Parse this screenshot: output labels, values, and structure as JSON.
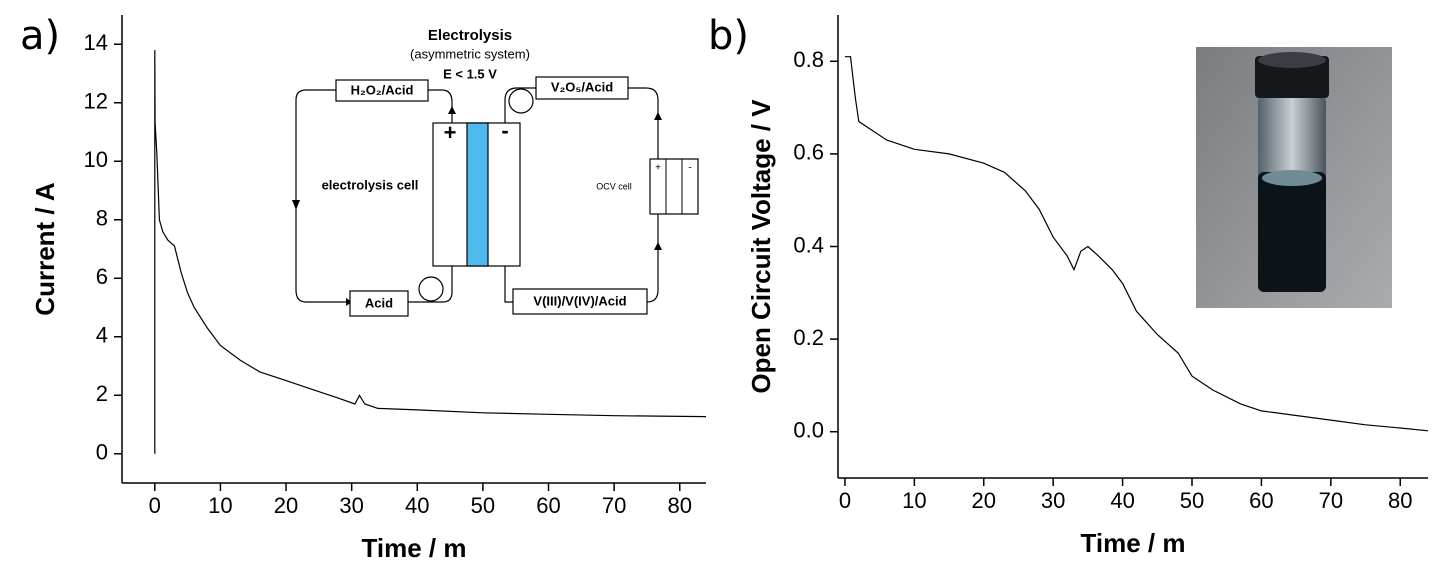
{
  "chart_data": [
    {
      "type": "line",
      "panel": "a)",
      "xlabel": "Time / m",
      "ylabel": "Current / A",
      "color": "#000000",
      "xlim": [
        -5,
        84
      ],
      "ylim": [
        -1,
        15
      ],
      "xticks": [
        0,
        10,
        20,
        30,
        40,
        50,
        60,
        70,
        80
      ],
      "yticks": [
        0,
        2,
        4,
        6,
        8,
        10,
        12,
        14
      ],
      "x": [
        0,
        0,
        0.05,
        0.3,
        0.7,
        1.2,
        2,
        3,
        4,
        5,
        6,
        8,
        10,
        13,
        16,
        20,
        24,
        28,
        30.5,
        31.2,
        32,
        34,
        40,
        50,
        60,
        70,
        84
      ],
      "values": [
        0,
        13.8,
        11.3,
        10.3,
        8,
        7.6,
        7.3,
        7.1,
        6.2,
        5.5,
        5,
        4.3,
        3.7,
        3.2,
        2.8,
        2.5,
        2.2,
        1.9,
        1.7,
        2.0,
        1.7,
        1.55,
        1.5,
        1.4,
        1.35,
        1.3,
        1.27
      ],
      "inset": {
        "title": "Electrolysis",
        "subtitle": "(asymmetric system)",
        "condition": "E < 1.5 V",
        "left_top": "H₂O₂/Acid",
        "right_top": "V₂O₅/Acid",
        "left_bottom": "Acid",
        "right_bottom": "V(III)/V(IV)/Acid",
        "cell": "electrolysis cell",
        "ocv": "OCV cell",
        "plus": "+",
        "minus": "-"
      }
    },
    {
      "type": "line",
      "panel": "b)",
      "xlabel": "Time / m",
      "ylabel": "Open Circuit Voltage / V",
      "color": "#000000",
      "xlim": [
        -1,
        84
      ],
      "ylim": [
        -0.1,
        0.9
      ],
      "xticks": [
        0,
        10,
        20,
        30,
        40,
        50,
        60,
        70,
        80
      ],
      "yticks": [
        {
          "value": 0,
          "label": "0.0"
        },
        0.2,
        0.4,
        0.6,
        0.8
      ],
      "x": [
        0,
        0.8,
        1.5,
        2,
        4,
        6,
        10,
        15,
        20,
        23,
        26,
        28,
        30,
        32,
        33,
        34,
        35,
        36.5,
        38.5,
        40,
        42,
        45,
        48,
        50,
        53,
        57,
        60,
        65,
        70,
        75,
        80,
        84
      ],
      "values": [
        0.81,
        0.81,
        0.72,
        0.67,
        0.65,
        0.63,
        0.61,
        0.6,
        0.58,
        0.56,
        0.52,
        0.48,
        0.42,
        0.38,
        0.35,
        0.39,
        0.4,
        0.38,
        0.35,
        0.32,
        0.26,
        0.21,
        0.17,
        0.12,
        0.09,
        0.06,
        0.045,
        0.035,
        0.025,
        0.015,
        0.008,
        0.002
      ]
    }
  ]
}
